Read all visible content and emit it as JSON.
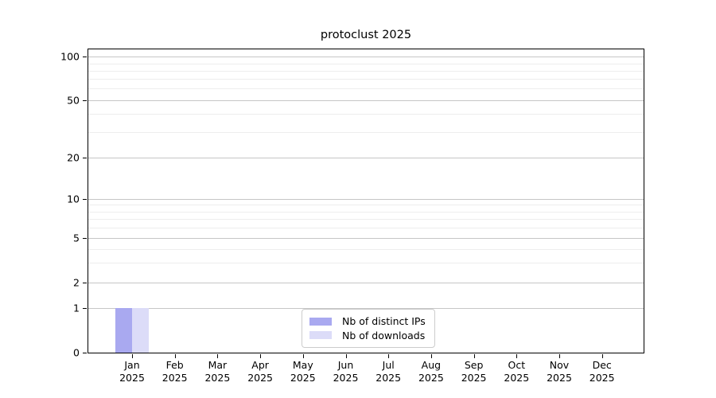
{
  "title": "protoclust 2025",
  "colors": {
    "distinct_ips": "#a9a9f0",
    "downloads": "#dcdcf8",
    "grid_major": "#c6c6c6",
    "grid_minor": "#ededed",
    "axis": "#000000",
    "legend_border": "#cccccc",
    "background": "#ffffff"
  },
  "legend": {
    "items": [
      {
        "label": "Nb of distinct IPs",
        "color": "#a9a9f0"
      },
      {
        "label": "Nb of downloads",
        "color": "#dcdcf8"
      }
    ]
  },
  "axes": {
    "y_tick_labels": [
      "0",
      "1",
      "2",
      "5",
      "10",
      "20",
      "50",
      "100"
    ],
    "x_tick_labels": [
      {
        "month": "Jan",
        "year": "2025"
      },
      {
        "month": "Feb",
        "year": "2025"
      },
      {
        "month": "Mar",
        "year": "2025"
      },
      {
        "month": "Apr",
        "year": "2025"
      },
      {
        "month": "May",
        "year": "2025"
      },
      {
        "month": "Jun",
        "year": "2025"
      },
      {
        "month": "Jul",
        "year": "2025"
      },
      {
        "month": "Aug",
        "year": "2025"
      },
      {
        "month": "Sep",
        "year": "2025"
      },
      {
        "month": "Oct",
        "year": "2025"
      },
      {
        "month": "Nov",
        "year": "2025"
      },
      {
        "month": "Dec",
        "year": "2025"
      }
    ]
  },
  "chart_data": {
    "type": "bar",
    "title": "protoclust 2025",
    "categories": [
      "Jan 2025",
      "Feb 2025",
      "Mar 2025",
      "Apr 2025",
      "May 2025",
      "Jun 2025",
      "Jul 2025",
      "Aug 2025",
      "Sep 2025",
      "Oct 2025",
      "Nov 2025",
      "Dec 2025"
    ],
    "series": [
      {
        "name": "Nb of distinct IPs",
        "color": "#a9a9f0",
        "values": [
          1,
          0,
          0,
          0,
          0,
          0,
          0,
          0,
          0,
          0,
          0,
          0
        ]
      },
      {
        "name": "Nb of downloads",
        "color": "#dcdcf8",
        "values": [
          1,
          0,
          0,
          0,
          0,
          0,
          0,
          0,
          0,
          0,
          0,
          0
        ]
      }
    ],
    "xlabel": "",
    "ylabel": "",
    "yscale": "symlog",
    "ylim": [
      0,
      110
    ],
    "y_major_ticks": [
      0,
      1,
      2,
      5,
      10,
      20,
      50,
      100
    ],
    "y_minor_ticks": [
      3,
      4,
      6,
      7,
      8,
      9,
      30,
      40,
      60,
      70,
      80,
      90
    ],
    "grid": "horizontal, major and minor",
    "legend_position": "inside lower center",
    "y_anchor_fractions": [
      [
        0,
        0
      ],
      [
        1,
        0.1462
      ],
      [
        2,
        0.2298
      ],
      [
        5,
        0.3786
      ],
      [
        10,
        0.5065
      ],
      [
        20,
        0.6423
      ],
      [
        50,
        0.8329
      ],
      [
        100,
        0.9752
      ]
    ]
  }
}
